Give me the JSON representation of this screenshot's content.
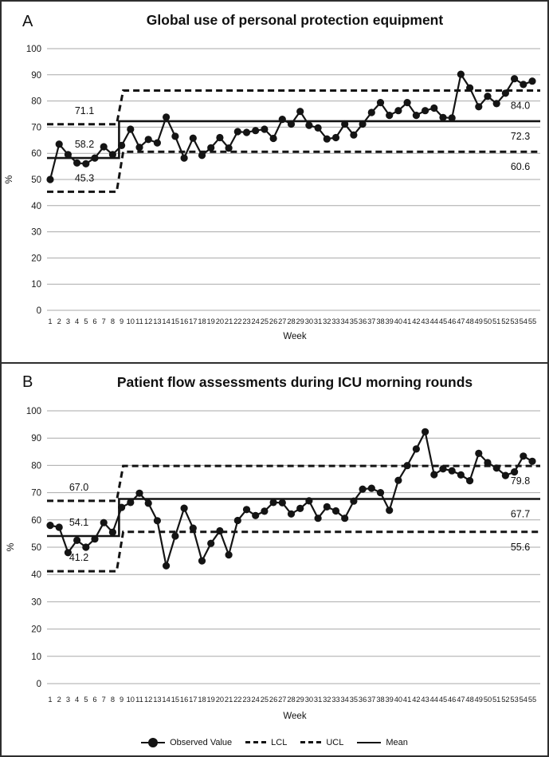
{
  "colors": {
    "series": "#141414",
    "grid": "#a9a9a9",
    "border": "#2e2e2e"
  },
  "legend": {
    "items": [
      {
        "label": "Observed Value",
        "marker": "line-with-dot"
      },
      {
        "label": "LCL",
        "marker": "dashed-line"
      },
      {
        "label": "UCL",
        "marker": "dashed-line"
      },
      {
        "label": "Mean",
        "marker": "solid-line"
      }
    ]
  },
  "chart_data": [
    {
      "type": "line",
      "panel_label": "A",
      "title": "Global use of personal protection equipment",
      "xlabel": "Week",
      "ylabel": "%",
      "ylim": [
        0,
        100
      ],
      "yticks": [
        100,
        90,
        80,
        70,
        60,
        50,
        40,
        30,
        20,
        10,
        0
      ],
      "weeks": [
        1,
        2,
        3,
        4,
        5,
        6,
        7,
        8,
        9,
        10,
        11,
        12,
        13,
        14,
        15,
        16,
        17,
        18,
        19,
        20,
        21,
        22,
        23,
        24,
        25,
        26,
        27,
        28,
        29,
        30,
        31,
        32,
        33,
        34,
        35,
        36,
        37,
        38,
        39,
        40,
        41,
        42,
        43,
        44,
        45,
        46,
        47,
        48,
        49,
        50,
        51,
        52,
        53,
        54,
        55
      ],
      "observed": [
        50,
        63.5,
        59.5,
        56.3,
        56,
        58.2,
        62.5,
        59.5,
        63,
        69.2,
        62.3,
        65.3,
        64,
        73.8,
        66.5,
        58.2,
        65.8,
        59.2,
        62.1,
        66,
        62,
        68.3,
        68,
        68.7,
        69.2,
        65.7,
        73,
        71.2,
        76,
        70.7,
        69.7,
        65.5,
        66,
        71.2,
        67,
        71.2,
        75.6,
        79.4,
        74.5,
        76.3,
        79.4,
        74.5,
        76.3,
        77.3,
        73.7,
        73.5,
        90.2,
        85,
        77.8,
        81.8,
        79,
        83,
        88.5,
        86.3,
        87.6
      ],
      "control_phases": [
        {
          "weeks_span": [
            1,
            8
          ],
          "ucl": 71.1,
          "mean": 58.2,
          "lcl": 45.3,
          "labels_side": "left",
          "labels": [
            "71.1",
            "58.2",
            "45.3"
          ]
        },
        {
          "weeks_span": [
            9,
            55
          ],
          "ucl": 84.0,
          "mean": 72.3,
          "lcl": 60.6,
          "labels_side": "right",
          "labels": [
            "84.0",
            "72.3",
            "60.6"
          ]
        }
      ]
    },
    {
      "type": "line",
      "panel_label": "B",
      "title": "Patient flow assessments during ICU morning rounds",
      "xlabel": "Week",
      "ylabel": "%",
      "ylim": [
        0,
        100
      ],
      "yticks": [
        100,
        90,
        80,
        70,
        60,
        50,
        40,
        30,
        20,
        10,
        0
      ],
      "weeks": [
        1,
        2,
        3,
        4,
        5,
        6,
        7,
        8,
        9,
        10,
        11,
        12,
        13,
        14,
        15,
        16,
        17,
        18,
        19,
        20,
        21,
        22,
        23,
        24,
        25,
        26,
        27,
        28,
        29,
        30,
        31,
        32,
        33,
        34,
        35,
        36,
        37,
        38,
        39,
        40,
        41,
        42,
        43,
        44,
        45,
        46,
        47,
        48,
        49,
        50,
        51,
        52,
        53,
        54,
        55
      ],
      "observed": [
        58,
        57.3,
        48,
        52.5,
        50,
        53,
        59,
        55.5,
        64.6,
        66.4,
        69.8,
        66.1,
        59.7,
        43.2,
        54.1,
        64.3,
        57,
        45,
        51.4,
        56,
        47.2,
        59.8,
        63.8,
        61.6,
        63.2,
        66.4,
        66.3,
        62.2,
        64.2,
        67,
        60.6,
        64.8,
        63.3,
        60.6,
        66.9,
        71.3,
        71.6,
        70,
        63.5,
        74.5,
        79.9,
        86,
        92.3,
        76.6,
        78.7,
        78,
        76.5,
        74.4,
        84.4,
        81,
        79,
        76.3,
        77.6,
        83.4,
        81.5
      ],
      "control_phases": [
        {
          "weeks_span": [
            1,
            8
          ],
          "ucl": 67.0,
          "mean": 54.1,
          "lcl": 41.2,
          "labels_side": "left",
          "labels": [
            "67.0",
            "54.1",
            "41.2"
          ]
        },
        {
          "weeks_span": [
            9,
            55
          ],
          "ucl": 79.8,
          "mean": 67.7,
          "lcl": 55.6,
          "labels_side": "right",
          "labels": [
            "79.8",
            "67.7",
            "55.6"
          ]
        }
      ]
    }
  ]
}
